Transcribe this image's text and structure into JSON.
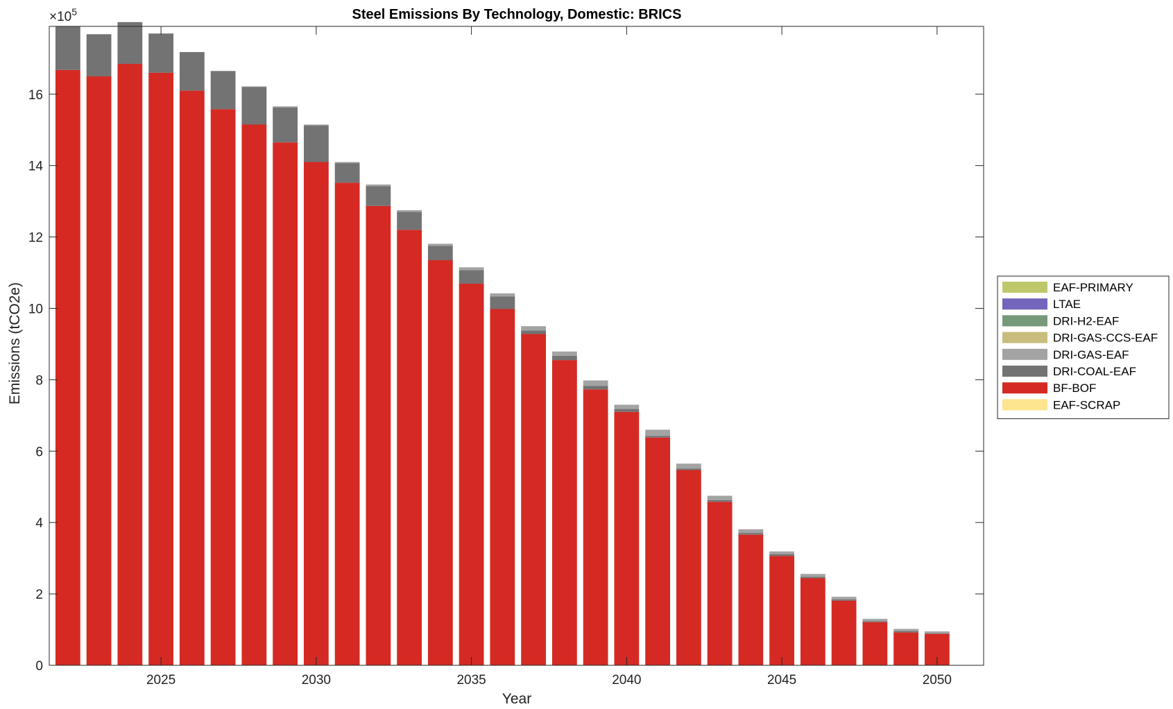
{
  "chart_data": {
    "type": "bar",
    "stacked": true,
    "title": "Steel Emissions By Technology, Domestic: BRICS",
    "xlabel": "Year",
    "ylabel": "Emissions (tCO2e)",
    "y_exponent_label": "×10",
    "y_exponent_power": "5",
    "y_scale": 100000,
    "xlim": [
      2021.4,
      2051.5
    ],
    "ylim": [
      0,
      17.9
    ],
    "x_ticks": [
      2025,
      2030,
      2035,
      2040,
      2045,
      2050
    ],
    "y_ticks": [
      0,
      2,
      4,
      6,
      8,
      10,
      12,
      14,
      16
    ],
    "grid": false,
    "legend_position": "right",
    "categories": [
      2022,
      2023,
      2024,
      2025,
      2026,
      2027,
      2028,
      2029,
      2030,
      2031,
      2032,
      2033,
      2034,
      2035,
      2036,
      2037,
      2038,
      2039,
      2040,
      2041,
      2042,
      2043,
      2044,
      2045,
      2046,
      2047,
      2048,
      2049,
      2050
    ],
    "legend_order": [
      "EAF-PRIMARY",
      "LTAE",
      "DRI-H2-EAF",
      "DRI-GAS-CCS-EAF",
      "DRI-GAS-EAF",
      "DRI-COAL-EAF",
      "BF-BOF",
      "EAF-SCRAP"
    ],
    "series": [
      {
        "name": "EAF-SCRAP",
        "color": "#fde58f",
        "values": [
          0,
          0,
          0,
          0,
          0,
          0,
          0,
          0,
          0,
          0,
          0,
          0,
          0,
          0,
          0,
          0,
          0,
          0,
          0,
          0,
          0,
          0,
          0,
          0,
          0,
          0,
          0,
          0,
          0
        ]
      },
      {
        "name": "BF-BOF",
        "color": "#d42a23",
        "values": [
          16.68,
          16.5,
          16.85,
          16.6,
          16.1,
          15.58,
          15.15,
          14.65,
          14.1,
          13.52,
          12.87,
          12.2,
          11.35,
          10.69,
          9.98,
          9.28,
          8.55,
          7.73,
          7.1,
          6.38,
          5.47,
          4.58,
          3.66,
          3.06,
          2.44,
          1.81,
          1.21,
          0.92,
          0.88
        ]
      },
      {
        "name": "DRI-COAL-EAF",
        "color": "#737373",
        "values": [
          1.22,
          1.18,
          1.17,
          1.1,
          1.08,
          1.07,
          1.05,
          0.98,
          1.02,
          0.55,
          0.55,
          0.5,
          0.4,
          0.38,
          0.35,
          0.1,
          0.12,
          0.1,
          0.08,
          0.05,
          0.04,
          0.05,
          0.05,
          0.05,
          0.04,
          0.04,
          0.03,
          0.04,
          0.02
        ]
      },
      {
        "name": "DRI-GAS-EAF",
        "color": "#a3a3a3",
        "values": [
          0,
          0,
          0,
          0,
          0,
          0,
          0.02,
          0.03,
          0.03,
          0.03,
          0.05,
          0.05,
          0.06,
          0.08,
          0.09,
          0.12,
          0.12,
          0.15,
          0.12,
          0.17,
          0.14,
          0.12,
          0.1,
          0.08,
          0.08,
          0.07,
          0.06,
          0.06,
          0.05
        ]
      },
      {
        "name": "DRI-GAS-CCS-EAF",
        "color": "#c8bd7d",
        "values": [
          0,
          0,
          0,
          0,
          0,
          0,
          0,
          0,
          0,
          0,
          0,
          0,
          0,
          0,
          0,
          0,
          0,
          0,
          0,
          0,
          0,
          0,
          0,
          0,
          0,
          0,
          0,
          0,
          0
        ]
      },
      {
        "name": "DRI-H2-EAF",
        "color": "#76997a",
        "values": [
          0,
          0,
          0,
          0,
          0,
          0,
          0,
          0,
          0,
          0,
          0,
          0,
          0,
          0,
          0,
          0,
          0,
          0,
          0,
          0,
          0,
          0,
          0,
          0,
          0,
          0,
          0,
          0,
          0
        ]
      },
      {
        "name": "LTAE",
        "color": "#7265bb",
        "values": [
          0,
          0,
          0,
          0,
          0,
          0,
          0,
          0,
          0,
          0,
          0,
          0,
          0,
          0,
          0,
          0,
          0,
          0,
          0,
          0,
          0,
          0,
          0,
          0,
          0,
          0,
          0,
          0,
          0
        ]
      },
      {
        "name": "EAF-PRIMARY",
        "color": "#bec86b",
        "values": [
          0,
          0,
          0,
          0,
          0,
          0,
          0,
          0,
          0,
          0,
          0,
          0,
          0,
          0,
          0,
          0,
          0,
          0,
          0,
          0,
          0,
          0,
          0,
          0,
          0,
          0,
          0,
          0,
          0
        ]
      }
    ]
  }
}
